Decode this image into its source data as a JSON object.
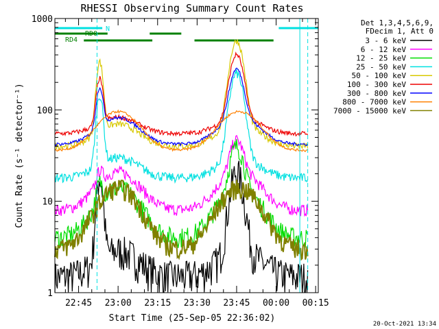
{
  "chart_data": {
    "type": "line",
    "title": "RHESSI Observing Summary Count Rates",
    "xlabel": "Start Time (25-Sep-05 22:36:02)",
    "ylabel": "Count Rate (s⁻¹ detector⁻¹)",
    "yscale": "log",
    "ylim": [
      1,
      1000
    ],
    "xlim": [
      "22:36",
      "00:16"
    ],
    "y_ticks": [
      "1",
      "10",
      "100",
      "1000"
    ],
    "x_ticks": [
      "22:45",
      "23:00",
      "23:15",
      "23:30",
      "23:45",
      "00:00",
      "00:15"
    ],
    "grid": true,
    "legend_header": [
      "Det 1,3,4,5,6,9,",
      "FDecim 1, Att 0"
    ],
    "footer_date": "20-Oct-2021 13:34",
    "flags": [
      {
        "label": "N",
        "color": "#00e0e0",
        "segments": [
          [
            "22:36",
            "22:54"
          ],
          [
            "00:01",
            "00:16"
          ]
        ]
      },
      {
        "label": "RD0",
        "color": "#008000",
        "segments": [
          [
            "22:36",
            "22:56"
          ],
          [
            "23:12",
            "23:24"
          ]
        ]
      },
      {
        "label": "RD4",
        "color": "#008000",
        "segments": [
          [
            "22:47",
            "23:13"
          ],
          [
            "23:29",
            "23:59"
          ]
        ]
      }
    ],
    "markers": {
      "dashed": [
        "22:52",
        "00:12"
      ],
      "solid": [
        "22:36",
        "00:09"
      ]
    },
    "series": [
      {
        "name": "3 - 6 keV",
        "color": "#000000"
      },
      {
        "name": "6 - 12 keV",
        "color": "#ff00ff"
      },
      {
        "name": "12 - 25 keV",
        "color": "#00dd00"
      },
      {
        "name": "25 - 50 keV",
        "color": "#00e0e0"
      },
      {
        "name": "50 - 100 keV",
        "color": "#d8c800"
      },
      {
        "name": "100 - 300 keV",
        "color": "#ee0000"
      },
      {
        "name": "300 - 800 keV",
        "color": "#0000ff"
      },
      {
        "name": "800 - 7000 keV",
        "color": "#ff8000"
      },
      {
        "name": "7000 - 15000 keV",
        "color": "#808000"
      }
    ]
  }
}
